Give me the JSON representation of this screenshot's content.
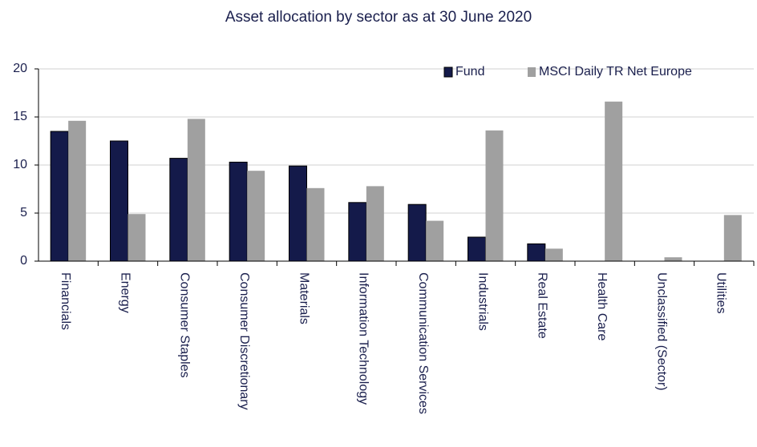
{
  "chart_data": {
    "type": "bar",
    "title": "Asset allocation by sector as at 30 June 2020",
    "categories": [
      "Financials",
      "Energy",
      "Consumer Staples",
      "Consumer Discretionary",
      "Materials",
      "Information Technology",
      "Communication Services",
      "Industrials",
      "Real Estate",
      "Health Care",
      "Unclassified (Sector)",
      "Utilities"
    ],
    "series": [
      {
        "name": "Fund",
        "color": "#141a4a",
        "values": [
          13.5,
          12.5,
          10.7,
          10.3,
          9.9,
          6.1,
          5.9,
          2.5,
          1.8,
          0,
          0,
          0
        ]
      },
      {
        "name": "MSCI Daily TR Net Europe",
        "color": "#a0a0a0",
        "values": [
          14.6,
          4.9,
          14.8,
          9.4,
          7.6,
          7.8,
          4.2,
          13.6,
          1.3,
          16.6,
          0.4,
          4.8
        ]
      }
    ],
    "ylim": [
      0,
      20
    ],
    "yticks": [
      0,
      5,
      10,
      15,
      20
    ],
    "grid": true,
    "legend": "top-right"
  }
}
